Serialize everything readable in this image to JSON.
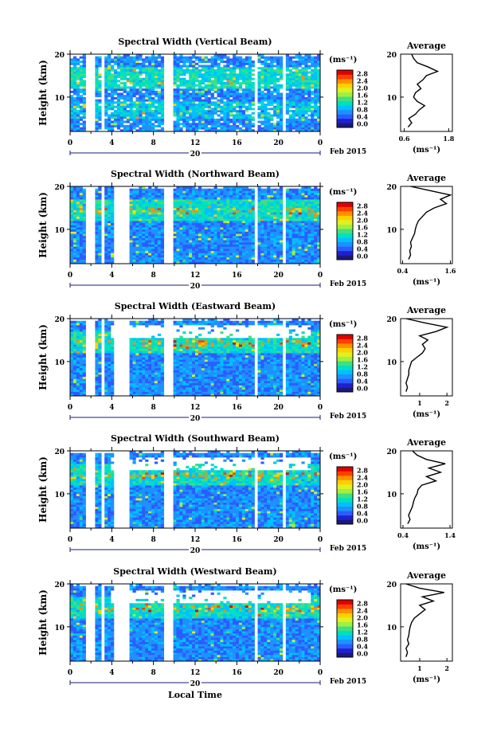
{
  "figure": {
    "ylabel": "Height (km)",
    "xlabel": "Local Time",
    "date_label": "Feb 2015",
    "day_label": "20",
    "average_title": "Average",
    "colorbar_unit": "(ms⁻¹)",
    "average_xlabel": "(ms⁻¹)"
  },
  "colors": {
    "background": "#ffffff",
    "axis": "#000000",
    "colormap": [
      "#1a1a7a",
      "#2020d0",
      "#2b5cff",
      "#1e90ff",
      "#00c0ff",
      "#00e0c0",
      "#40e080",
      "#a0f040",
      "#e0f020",
      "#ffd000",
      "#ff9000",
      "#ff4000",
      "#e00000"
    ]
  },
  "chart_data": [
    {
      "type": "heatmap",
      "title": "Spectral Width (Vertical Beam)",
      "x_ticks": [
        "0",
        "4",
        "8",
        "12",
        "16",
        "20",
        "0"
      ],
      "y_ticks": [
        "20",
        "10"
      ],
      "xlim": [
        0,
        24
      ],
      "ylim": [
        2,
        20
      ],
      "colorbar_ticks": [
        "2.8",
        "2.4",
        "2.0",
        "1.6",
        "1.2",
        "0.8",
        "0.4",
        "0.0"
      ],
      "gaps_hours": [
        [
          1.6,
          2.3
        ],
        [
          3.0,
          3.3
        ],
        [
          9.1,
          9.8
        ],
        [
          17.8,
          18.1
        ],
        [
          20.5,
          20.8
        ]
      ],
      "average": {
        "x_ticks": [
          "0.6",
          "1.8"
        ],
        "xlim": [
          0.5,
          1.9
        ],
        "y_ticks": [
          "20",
          "10"
        ],
        "heights": [
          3,
          4,
          5,
          6,
          7,
          8,
          9,
          10,
          11,
          12,
          13,
          14,
          15,
          16,
          17,
          18,
          19,
          20
        ],
        "values": [
          0.7,
          0.8,
          0.72,
          0.9,
          1.0,
          1.15,
          0.95,
          0.85,
          0.9,
          1.05,
          0.95,
          1.1,
          1.2,
          1.5,
          1.25,
          0.95,
          0.85,
          0.8
        ]
      }
    },
    {
      "type": "heatmap",
      "title": "Spectral Width (Northward Beam)",
      "x_ticks": [
        "0",
        "4",
        "8",
        "12",
        "16",
        "20",
        "0"
      ],
      "y_ticks": [
        "20",
        "10"
      ],
      "xlim": [
        0,
        24
      ],
      "ylim": [
        2,
        20
      ],
      "colorbar_ticks": [
        "2.8",
        "2.4",
        "2.0",
        "1.6",
        "1.2",
        "0.8",
        "0.4",
        "0.0"
      ],
      "gaps_hours": [
        [
          1.6,
          2.3
        ],
        [
          3.0,
          3.3
        ],
        [
          4.2,
          5.6
        ],
        [
          9.1,
          9.8
        ],
        [
          17.8,
          18.1
        ],
        [
          20.5,
          20.8
        ]
      ],
      "average": {
        "x_ticks": [
          "0.4",
          "1.6"
        ],
        "xlim": [
          0.35,
          1.65
        ],
        "y_ticks": [
          "20",
          "10"
        ],
        "heights": [
          3,
          4,
          5,
          6,
          7,
          8,
          9,
          10,
          11,
          12,
          13,
          14,
          15,
          16,
          17,
          18,
          19,
          20
        ],
        "values": [
          0.55,
          0.6,
          0.58,
          0.62,
          0.6,
          0.65,
          0.7,
          0.72,
          0.75,
          0.8,
          0.9,
          1.0,
          1.2,
          1.5,
          1.35,
          1.6,
          1.1,
          0.6
        ]
      }
    },
    {
      "type": "heatmap",
      "title": "Spectral Width (Eastward Beam)",
      "x_ticks": [
        "0",
        "4",
        "8",
        "12",
        "16",
        "20",
        "0"
      ],
      "y_ticks": [
        "20",
        "10"
      ],
      "xlim": [
        0,
        24
      ],
      "ylim": [
        2,
        20
      ],
      "colorbar_ticks": [
        "2.8",
        "2.4",
        "2.0",
        "1.6",
        "1.2",
        "0.8",
        "0.4",
        "0.0"
      ],
      "gaps_hours": [
        [
          1.6,
          2.3
        ],
        [
          3.0,
          3.3
        ],
        [
          4.2,
          5.6
        ],
        [
          9.1,
          9.8
        ],
        [
          17.8,
          18.1
        ],
        [
          20.5,
          20.8
        ]
      ],
      "average": {
        "x_ticks": [
          "1",
          "2"
        ],
        "xlim": [
          0.3,
          2.2
        ],
        "y_ticks": [
          "20",
          "10"
        ],
        "heights": [
          3,
          4,
          5,
          6,
          7,
          8,
          9,
          10,
          11,
          12,
          13,
          14,
          15,
          16,
          17,
          18,
          19,
          20
        ],
        "values": [
          0.5,
          0.55,
          0.5,
          0.55,
          0.6,
          0.6,
          0.65,
          0.7,
          0.9,
          1.1,
          1.2,
          1.1,
          1.3,
          1.0,
          1.6,
          2.0,
          1.2,
          0.5
        ]
      }
    },
    {
      "type": "heatmap",
      "title": "Spectral Width (Southward Beam)",
      "x_ticks": [
        "0",
        "4",
        "8",
        "12",
        "16",
        "20",
        "0"
      ],
      "y_ticks": [
        "20",
        "10"
      ],
      "xlim": [
        0,
        24
      ],
      "ylim": [
        2,
        20
      ],
      "colorbar_ticks": [
        "2.8",
        "2.4",
        "2.0",
        "1.6",
        "1.2",
        "0.8",
        "0.4",
        "0.0"
      ],
      "gaps_hours": [
        [
          1.6,
          2.3
        ],
        [
          3.0,
          3.3
        ],
        [
          4.2,
          5.6
        ],
        [
          9.1,
          9.8
        ],
        [
          17.8,
          18.1
        ],
        [
          20.5,
          20.8
        ]
      ],
      "average": {
        "x_ticks": [
          "0.4",
          "1.4"
        ],
        "xlim": [
          0.35,
          1.45
        ],
        "y_ticks": [
          "20",
          "10"
        ],
        "heights": [
          3,
          4,
          5,
          6,
          7,
          8,
          9,
          10,
          11,
          12,
          13,
          14,
          15,
          16,
          17,
          18,
          19,
          20
        ],
        "values": [
          0.5,
          0.55,
          0.52,
          0.56,
          0.6,
          0.62,
          0.65,
          0.7,
          0.72,
          0.8,
          1.1,
          0.9,
          1.2,
          0.95,
          1.3,
          0.9,
          0.7,
          0.6
        ]
      }
    },
    {
      "type": "heatmap",
      "title": "Spectral Width (Westward Beam)",
      "x_ticks": [
        "0",
        "4",
        "8",
        "12",
        "16",
        "20",
        "0"
      ],
      "y_ticks": [
        "20",
        "10"
      ],
      "xlim": [
        0,
        24
      ],
      "ylim": [
        2,
        20
      ],
      "colorbar_ticks": [
        "2.8",
        "2.4",
        "2.0",
        "1.6",
        "1.2",
        "0.8",
        "0.4",
        "0.0"
      ],
      "gaps_hours": [
        [
          1.6,
          2.3
        ],
        [
          3.0,
          3.3
        ],
        [
          4.2,
          5.6
        ],
        [
          9.1,
          9.8
        ],
        [
          17.8,
          18.1
        ],
        [
          20.5,
          20.8
        ]
      ],
      "average": {
        "x_ticks": [
          "1",
          "2"
        ],
        "xlim": [
          0.3,
          2.2
        ],
        "y_ticks": [
          "20",
          "10"
        ],
        "heights": [
          3,
          4,
          5,
          6,
          7,
          8,
          9,
          10,
          11,
          12,
          13,
          14,
          15,
          16,
          17,
          18,
          19,
          20
        ],
        "values": [
          0.5,
          0.55,
          0.5,
          0.6,
          0.55,
          0.6,
          0.62,
          0.65,
          0.7,
          0.8,
          1.0,
          1.2,
          1.0,
          1.5,
          1.1,
          1.9,
          1.0,
          0.5
        ]
      }
    }
  ]
}
